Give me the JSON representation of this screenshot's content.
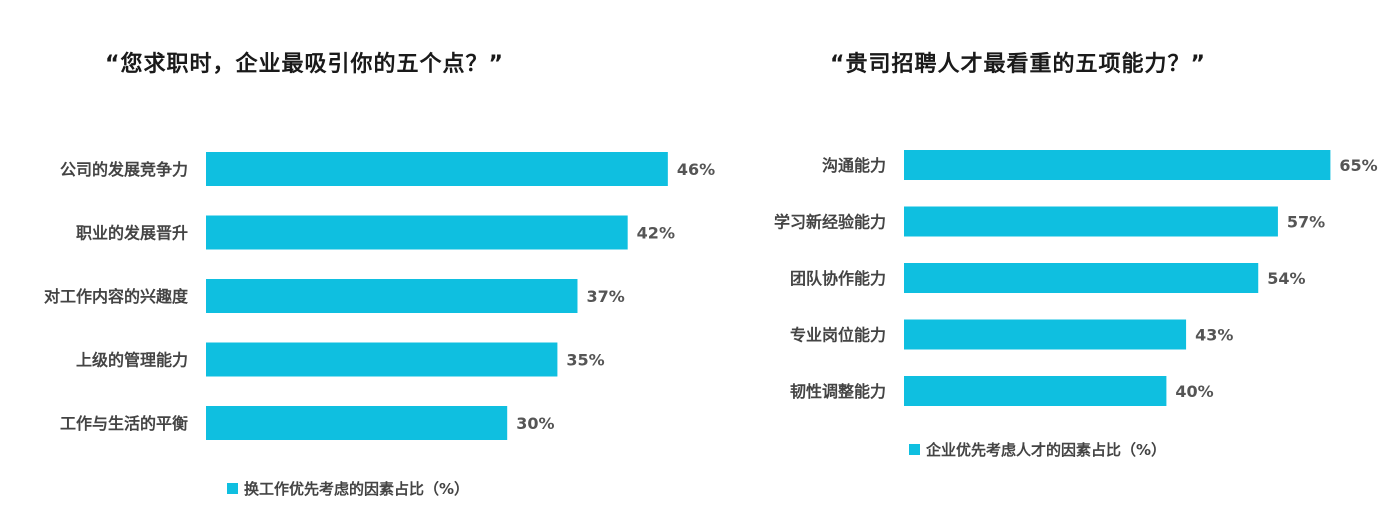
{
  "accent": "#0fbfe0",
  "chart_data": [
    {
      "type": "bar",
      "orientation": "horizontal",
      "title": "“您求职时，企业最吸引你的五个点？”",
      "categories": [
        "公司的发展竞争力",
        "职业的发展晋升",
        "对工作内容的兴趣度",
        "上级的管理能力",
        "工作与生活的平衡"
      ],
      "values": [
        46,
        42,
        37,
        35,
        30
      ],
      "value_labels": [
        "46%",
        "42%",
        "37%",
        "35%",
        "30%"
      ],
      "series": [
        {
          "name": "换工作优先考虑的因素占比（%）",
          "values": [
            46,
            42,
            37,
            35,
            30
          ]
        }
      ],
      "legend": "bottom",
      "grid": false
    },
    {
      "type": "bar",
      "orientation": "horizontal",
      "title": "“贵司招聘人才最看重的五项能力？”",
      "categories": [
        "沟通能力",
        "学习新经验能力",
        "团队协作能力",
        "专业岗位能力",
        "韧性调整能力"
      ],
      "values": [
        65,
        57,
        54,
        43,
        40
      ],
      "value_labels": [
        "65%",
        "57%",
        "54%",
        "43%",
        "40%"
      ],
      "series": [
        {
          "name": "企业优先考虑人才的因素占比（%）",
          "values": [
            65,
            57,
            54,
            43,
            40
          ]
        }
      ],
      "legend": "bottom",
      "grid": false
    }
  ]
}
